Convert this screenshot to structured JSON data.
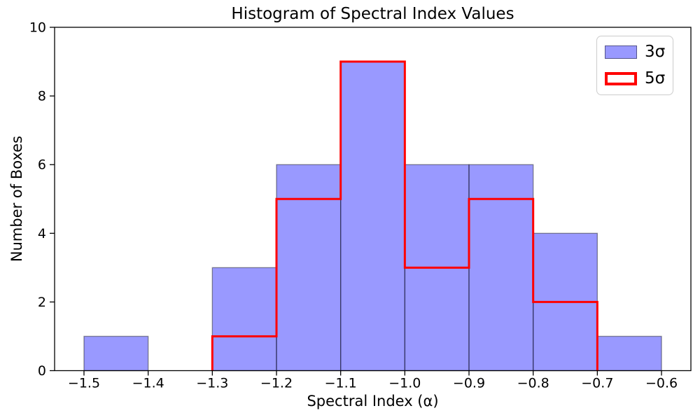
{
  "chart_data": {
    "type": "histogram",
    "title": "Histogram of Spectral Index Values",
    "xlabel": "Spectral Index (α)",
    "ylabel": "Number of Boxes",
    "xlim": [
      -1.5458,
      -0.5542
    ],
    "ylim": [
      0,
      10
    ],
    "grid": false,
    "legend_position": "upper right",
    "bin_width": 0.1,
    "series": [
      {
        "name": "3σ",
        "histtype": "filled",
        "fillcolor": "rgba(0,0,255,0.4)",
        "edgecolor": "rgba(0,0,0,0.4)",
        "edgewidth": 1.4,
        "bin_edges": [
          -1.5,
          -1.4,
          -1.3,
          -1.2,
          -1.1,
          -1.0,
          -0.9,
          -0.8,
          -0.7,
          -0.6
        ],
        "counts": [
          1,
          0,
          3,
          6,
          9,
          6,
          6,
          4,
          1
        ]
      },
      {
        "name": "5σ",
        "histtype": "step",
        "color": "#ff0000",
        "linewidth": 3,
        "bin_edges": [
          -1.3,
          -1.2,
          -1.1,
          -1.0,
          -0.9,
          -0.8,
          -0.7
        ],
        "counts": [
          1,
          5,
          9,
          3,
          5,
          2
        ]
      }
    ],
    "xticks": [
      {
        "value": -1.5,
        "label": "−1.5"
      },
      {
        "value": -1.4,
        "label": "−1.4"
      },
      {
        "value": -1.3,
        "label": "−1.3"
      },
      {
        "value": -1.2,
        "label": "−1.2"
      },
      {
        "value": -1.1,
        "label": "−1.1"
      },
      {
        "value": -1.0,
        "label": "−1.0"
      },
      {
        "value": -0.9,
        "label": "−0.9"
      },
      {
        "value": -0.8,
        "label": "−0.8"
      },
      {
        "value": -0.7,
        "label": "−0.7"
      },
      {
        "value": -0.6,
        "label": "−0.6"
      }
    ],
    "yticks": [
      {
        "value": 0,
        "label": "0"
      },
      {
        "value": 2,
        "label": "2"
      },
      {
        "value": 4,
        "label": "4"
      },
      {
        "value": 6,
        "label": "6"
      },
      {
        "value": 8,
        "label": "8"
      },
      {
        "value": 10,
        "label": "10"
      }
    ]
  },
  "legend": {
    "items": [
      {
        "label": "3σ",
        "swatch": "filled"
      },
      {
        "label": "5σ",
        "swatch": "outline"
      }
    ]
  }
}
